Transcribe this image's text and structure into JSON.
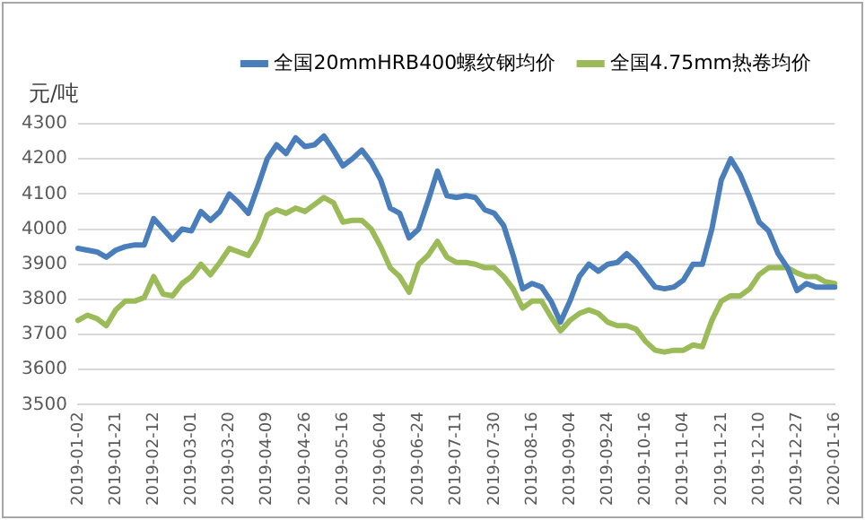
{
  "chart_data": {
    "type": "line",
    "ylabel": "元/吨",
    "categories": [
      "2019-01-02",
      null,
      null,
      null,
      "2019-01-21",
      null,
      null,
      null,
      "2019-02-12",
      null,
      null,
      null,
      "2019-03-01",
      null,
      null,
      null,
      "2019-03-20",
      null,
      null,
      null,
      "2019-04-09",
      null,
      null,
      null,
      "2019-04-26",
      null,
      null,
      null,
      "2019-05-16",
      null,
      null,
      null,
      "2019-06-04",
      null,
      null,
      null,
      "2019-06-24",
      null,
      null,
      null,
      "2019-07-11",
      null,
      null,
      null,
      "2019-07-30",
      null,
      null,
      null,
      "2019-08-16",
      null,
      null,
      null,
      "2019-09-04",
      null,
      null,
      null,
      "2019-09-24",
      null,
      null,
      null,
      "2019-10-16",
      null,
      null,
      null,
      "2019-11-04",
      null,
      null,
      null,
      "2019-11-21",
      null,
      null,
      null,
      "2019-12-10",
      null,
      null,
      null,
      "2019-12-27",
      null,
      null,
      null,
      "2020-01-16"
    ],
    "series": [
      {
        "name": "全国20mmHRB400螺纹钢均价",
        "color": "#4a7ebb",
        "values": [
          3945,
          3940,
          3935,
          3920,
          3940,
          3950,
          3955,
          3955,
          4030,
          4000,
          3970,
          4000,
          3995,
          4050,
          4025,
          4050,
          4100,
          4075,
          4045,
          4120,
          4200,
          4240,
          4215,
          4260,
          4235,
          4240,
          4265,
          4225,
          4180,
          4200,
          4225,
          4190,
          4140,
          4060,
          4045,
          3975,
          4000,
          4080,
          4165,
          4095,
          4090,
          4095,
          4090,
          4055,
          4045,
          4010,
          3925,
          3830,
          3845,
          3835,
          3795,
          3735,
          3795,
          3865,
          3900,
          3880,
          3900,
          3905,
          3930,
          3905,
          3870,
          3835,
          3830,
          3835,
          3855,
          3900,
          3900,
          4000,
          4140,
          4200,
          4155,
          4090,
          4020,
          3995,
          3930,
          3890,
          3825,
          3845,
          3835,
          3835,
          3835
        ]
      },
      {
        "name": "全国4.75mm热卷均价",
        "color": "#9bbb59",
        "values": [
          3740,
          3755,
          3745,
          3725,
          3770,
          3795,
          3795,
          3805,
          3865,
          3815,
          3810,
          3845,
          3865,
          3900,
          3870,
          3905,
          3945,
          3935,
          3925,
          3970,
          4040,
          4055,
          4045,
          4060,
          4050,
          4070,
          4090,
          4075,
          4020,
          4025,
          4025,
          4000,
          3950,
          3890,
          3865,
          3820,
          3900,
          3925,
          3965,
          3920,
          3905,
          3905,
          3900,
          3890,
          3890,
          3865,
          3830,
          3775,
          3795,
          3795,
          3750,
          3710,
          3740,
          3760,
          3770,
          3760,
          3735,
          3725,
          3725,
          3715,
          3680,
          3655,
          3650,
          3655,
          3655,
          3670,
          3665,
          3740,
          3795,
          3810,
          3810,
          3830,
          3870,
          3890,
          3890,
          3890,
          3875,
          3865,
          3865,
          3850,
          3845
        ]
      }
    ],
    "ylim": [
      3500,
      4300
    ],
    "yticks": [
      3500,
      3600,
      3700,
      3800,
      3900,
      4000,
      4100,
      4200,
      4300
    ],
    "grid": "y",
    "legend": "top",
    "marker": "none",
    "line_style": "solid"
  }
}
